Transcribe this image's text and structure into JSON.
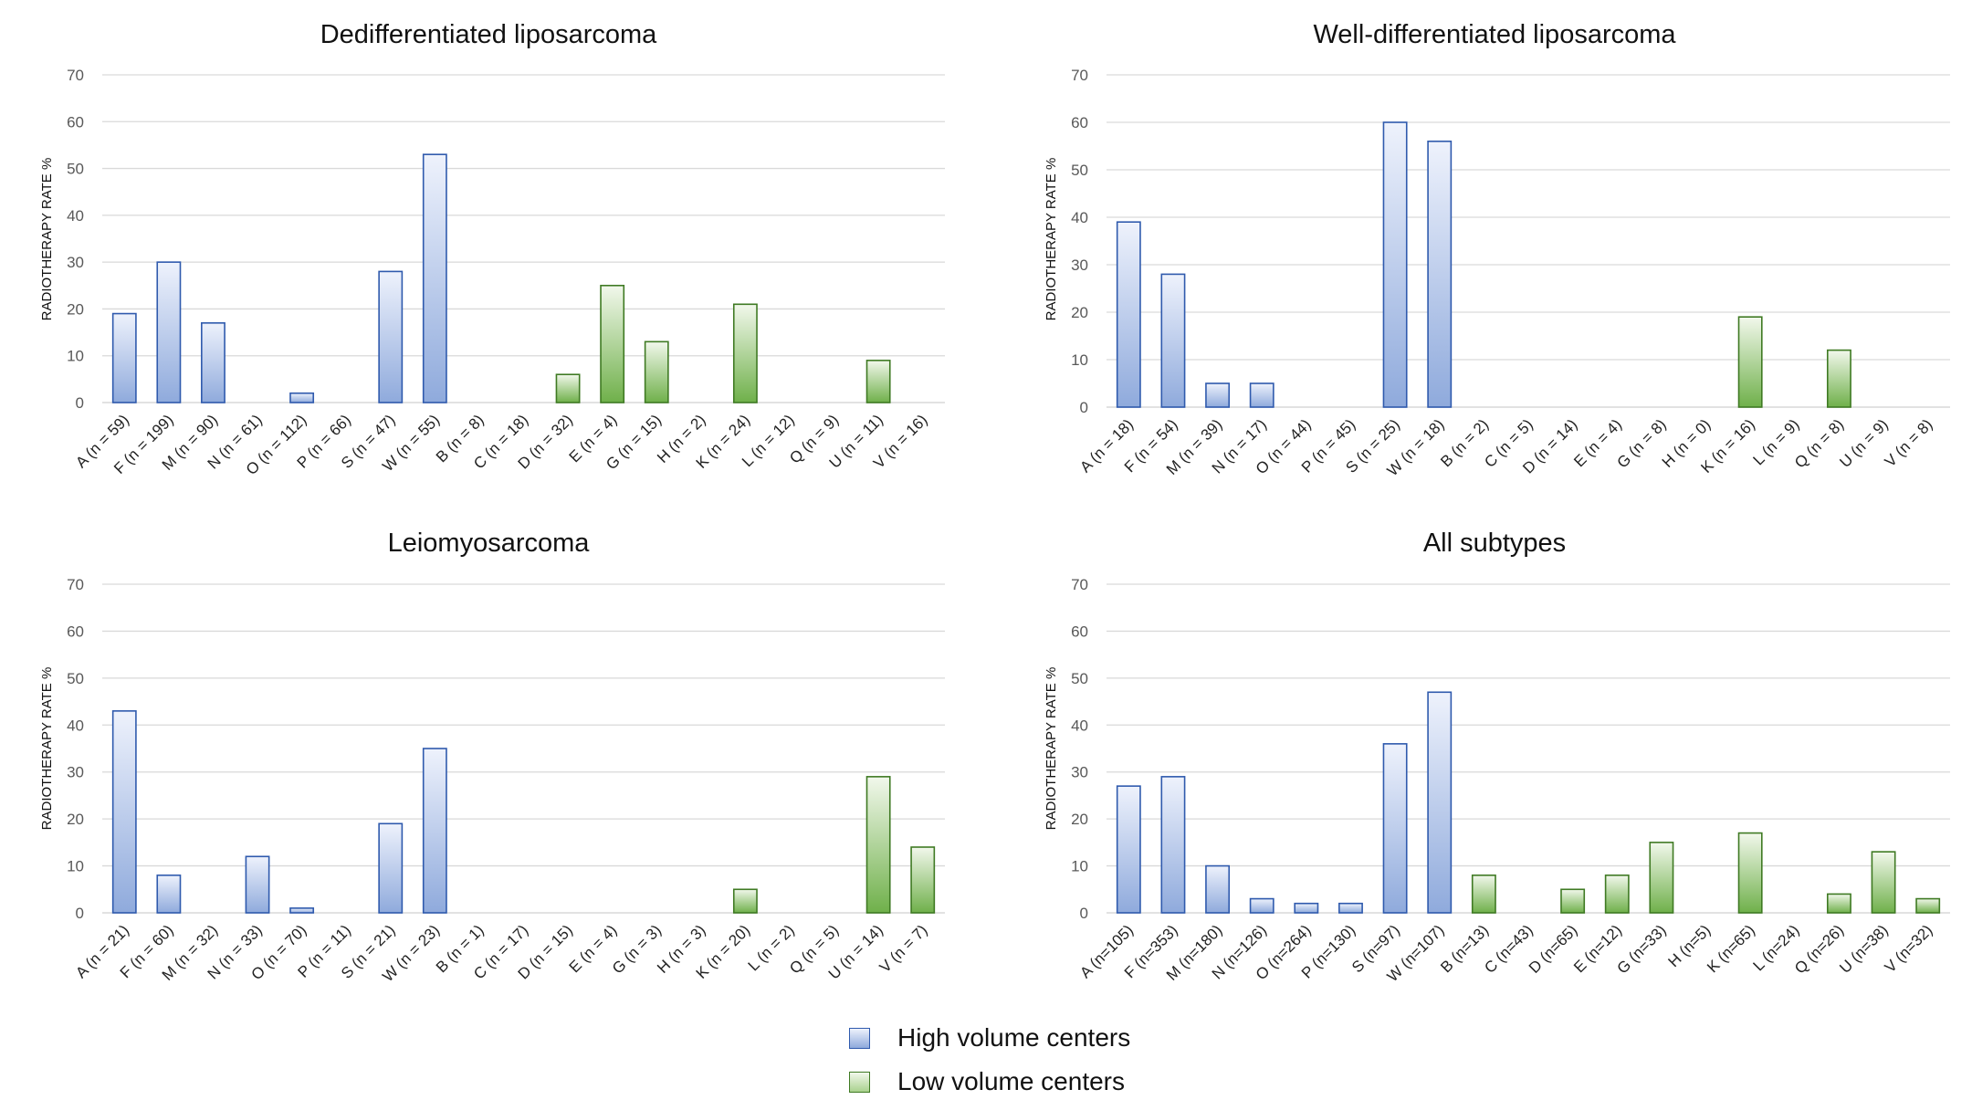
{
  "legend": {
    "high": {
      "label": "High volume centers",
      "color": "#8faadc"
    },
    "low": {
      "label": "Low volume centers",
      "color": "#a9d18e"
    }
  },
  "colors": {
    "high_top": "#eef2fc",
    "high_bottom": "#8faadc",
    "high_border": "#2f5aad",
    "low_top": "#f2f8ec",
    "low_bottom": "#6fb04a",
    "low_border": "#3f7a23",
    "grid": "#d9d9d9"
  },
  "chart_data": [
    {
      "type": "bar",
      "title": "Dedifferentiated liposarcoma",
      "ylabel": "RADIOTHERAPY RATE %",
      "ylim": [
        0,
        70
      ],
      "yticks": [
        "0",
        "10",
        "20",
        "30",
        "40",
        "50",
        "60",
        "70"
      ],
      "grid": true,
      "categories": [
        "A (n = 59)",
        "F (n = 199)",
        "M (n = 90)",
        "N (n = 61)",
        "O (n = 112)",
        "P (n = 66)",
        "S (n = 47)",
        "W (n = 55)",
        "B (n = 8)",
        "C (n = 18)",
        "D (n = 32)",
        "E (n = 4)",
        "G (n = 15)",
        "H (n = 2)",
        "K (n = 24)",
        "L (n = 12)",
        "Q (n = 9)",
        "U (n = 11)",
        "V (n = 16)"
      ],
      "values": [
        19,
        30,
        17,
        0,
        2,
        0,
        28,
        53,
        0,
        0,
        6,
        25,
        13,
        0,
        21,
        0,
        0,
        9,
        0
      ],
      "groups": [
        "high",
        "high",
        "high",
        "high",
        "high",
        "high",
        "high",
        "high",
        "low",
        "low",
        "low",
        "low",
        "low",
        "low",
        "low",
        "low",
        "low",
        "low",
        "low"
      ]
    },
    {
      "type": "bar",
      "title": "Well-differentiated liposarcoma",
      "ylabel": "RADIOTHERAPY RATE %",
      "ylim": [
        0,
        70
      ],
      "yticks": [
        "0",
        "10",
        "20",
        "30",
        "40",
        "50",
        "60",
        "70"
      ],
      "grid": true,
      "categories": [
        "A (n = 18)",
        "F (n = 54)",
        "M (n = 39)",
        "N (n = 17)",
        "O (n = 44)",
        "P (n = 45)",
        "S (n = 25)",
        "W (n = 18)",
        "B (n = 2)",
        "C (n = 5)",
        "D (n = 14)",
        "E (n = 4)",
        "G (n = 8)",
        "H (n = 0)",
        "K (n = 16)",
        "L (n = 9)",
        "Q (n = 8)",
        "U (n = 9)",
        "V (n = 8)"
      ],
      "values": [
        39,
        28,
        5,
        5,
        0,
        0,
        60,
        56,
        0,
        0,
        0,
        0,
        0,
        0,
        19,
        0,
        12,
        0,
        0
      ],
      "groups": [
        "high",
        "high",
        "high",
        "high",
        "high",
        "high",
        "high",
        "high",
        "low",
        "low",
        "low",
        "low",
        "low",
        "low",
        "low",
        "low",
        "low",
        "low",
        "low"
      ]
    },
    {
      "type": "bar",
      "title": "Leiomyosarcoma",
      "ylabel": "RADIOTHERAPY RATE %",
      "ylim": [
        0,
        70
      ],
      "yticks": [
        "0",
        "10",
        "20",
        "30",
        "40",
        "50",
        "60",
        "70"
      ],
      "grid": true,
      "categories": [
        "A (n = 21)",
        "F (n = 60)",
        "M (n = 32)",
        "N (n = 33)",
        "O (n = 70)",
        "P (n = 11)",
        "S (n = 21)",
        "W (n = 23)",
        "B (n = 1)",
        "C (n = 17)",
        "D (n = 15)",
        "E (n = 4)",
        "G (n = 3)",
        "H (n = 3)",
        "K (n = 20)",
        "L (n = 2)",
        "Q (n = 5)",
        "U (n = 14)",
        "V (n = 7)"
      ],
      "values": [
        43,
        8,
        0,
        12,
        1,
        0,
        19,
        35,
        0,
        0,
        0,
        0,
        0,
        0,
        5,
        0,
        0,
        29,
        14
      ],
      "groups": [
        "high",
        "high",
        "high",
        "high",
        "high",
        "high",
        "high",
        "high",
        "low",
        "low",
        "low",
        "low",
        "low",
        "low",
        "low",
        "low",
        "low",
        "low",
        "low"
      ]
    },
    {
      "type": "bar",
      "title": "All subtypes",
      "ylabel": "RADIOTHERAPY RATE %",
      "ylim": [
        0,
        70
      ],
      "yticks": [
        "0",
        "10",
        "20",
        "30",
        "40",
        "50",
        "60",
        "70"
      ],
      "grid": true,
      "categories": [
        "A (n=105)",
        "F (n=353)",
        "M (n=180)",
        "N (n=126)",
        "O (n=264)",
        "P (n=130)",
        "S (n=97)",
        "W (n=107)",
        "B (n=13)",
        "C (n=43)",
        "D (n=65)",
        "E (n=12)",
        "G (n=33)",
        "H (n=5)",
        "K (n=65)",
        "L (n=24)",
        "Q (n=26)",
        "U (n=38)",
        "V (n=32)"
      ],
      "values": [
        27,
        29,
        10,
        3,
        2,
        2,
        36,
        47,
        8,
        0,
        5,
        8,
        15,
        0,
        17,
        0,
        4,
        13,
        3
      ],
      "groups": [
        "high",
        "high",
        "high",
        "high",
        "high",
        "high",
        "high",
        "high",
        "low",
        "low",
        "low",
        "low",
        "low",
        "low",
        "low",
        "low",
        "low",
        "low",
        "low"
      ]
    }
  ]
}
